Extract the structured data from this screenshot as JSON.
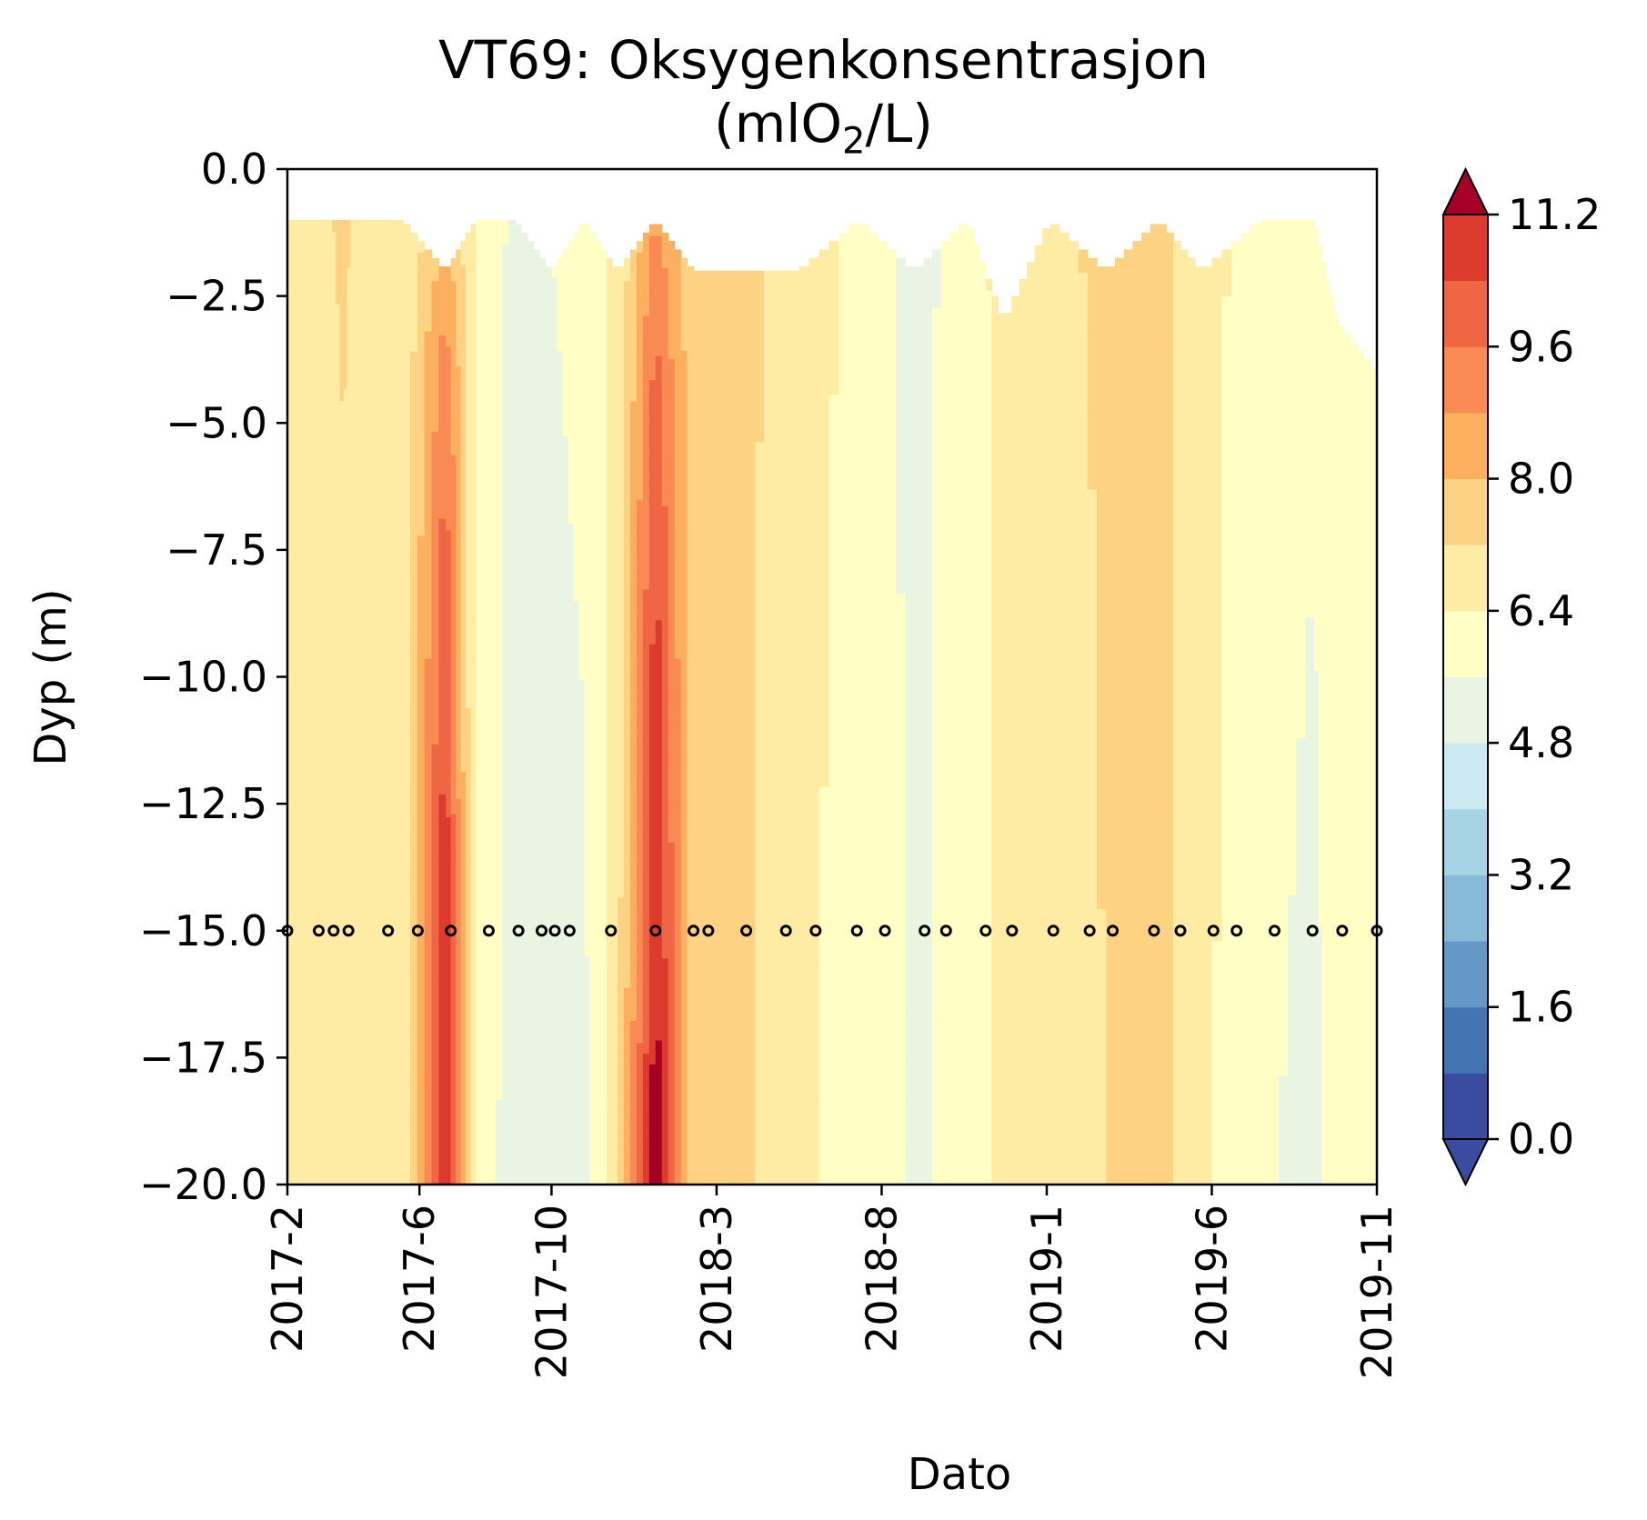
{
  "chart_data": {
    "type": "heatmap",
    "subtype": "filled-contour",
    "title": "VT69: Oksygenkonsentrasjon",
    "subtitle_pre": "(mlO",
    "subtitle_sub": "2",
    "subtitle_post": "/L)",
    "xlabel": "Dato",
    "ylabel": "Dyp (m)",
    "ylim": [
      -20.0,
      0.0
    ],
    "yticks": [
      "0.0",
      "−2.5",
      "−5.0",
      "−7.5",
      "−10.0",
      "−12.5",
      "−15.0",
      "−17.5",
      "−20.0"
    ],
    "ytick_values": [
      0.0,
      -2.5,
      -5.0,
      -7.5,
      -10.0,
      -12.5,
      -15.0,
      -17.5,
      -20.0
    ],
    "xtick_labels": [
      "2017-2",
      "2017-6",
      "2017-10",
      "2018-3",
      "2018-8",
      "2019-1",
      "2019-6",
      "2019-11"
    ],
    "xtick_months": [
      0,
      4,
      8,
      13,
      18,
      23,
      28,
      33
    ],
    "colorbar": {
      "levels": [
        0.0,
        0.8,
        1.6,
        2.4,
        3.2,
        4.0,
        4.8,
        5.6,
        6.4,
        7.2,
        8.0,
        8.8,
        9.6,
        10.4,
        11.2
      ],
      "tick_labels": [
        "0.0",
        "1.6",
        "3.2",
        "4.8",
        "6.4",
        "8.0",
        "9.6",
        "11.2"
      ],
      "tick_values": [
        0.0,
        1.6,
        3.2,
        4.8,
        6.4,
        8.0,
        9.6,
        11.2
      ],
      "colors": [
        "#3a4ca0",
        "#4574b3",
        "#6597c7",
        "#88b9d9",
        "#a6d4e6",
        "#cde9f1",
        "#e9f4e2",
        "#fffec4",
        "#feeba4",
        "#fed283",
        "#fdaf60",
        "#f98a53",
        "#ef6644",
        "#dc3b2e",
        "#a50026"
      ],
      "extend": "both"
    },
    "samples": {
      "depth": -15.0,
      "months": [
        0,
        0.95,
        1.4,
        1.85,
        3.05,
        3.95,
        4.95,
        6.1,
        7.0,
        7.7,
        8.1,
        8.55,
        9.8,
        11.15,
        12.3,
        12.75,
        13.9,
        15.1,
        16.0,
        17.25,
        18.1,
        19.3,
        19.95,
        21.15,
        21.95,
        23.2,
        24.3,
        25.0,
        26.25,
        27.05,
        28.05,
        28.75,
        29.9,
        31.05,
        31.95,
        33.0
      ]
    },
    "columns": [
      {
        "month": 0.0,
        "surface": -1.0,
        "top": 6.8,
        "bottom": 6.8
      },
      {
        "month": 1.0,
        "surface": -1.0,
        "top": 7.0,
        "bottom": 6.8
      },
      {
        "month": 1.7,
        "surface": -1.0,
        "top": 7.4,
        "bottom": 7.0
      },
      {
        "month": 2.3,
        "surface": -1.0,
        "top": 6.9,
        "bottom": 6.8
      },
      {
        "month": 3.5,
        "surface": -1.0,
        "top": 6.4,
        "bottom": 6.7
      },
      {
        "month": 4.8,
        "surface": -2.0,
        "top": 8.0,
        "bottom": 11.6
      },
      {
        "month": 5.7,
        "surface": -1.0,
        "top": 6.3,
        "bottom": 6.0
      },
      {
        "month": 6.9,
        "surface": -1.0,
        "top": 5.4,
        "bottom": 5.3
      },
      {
        "month": 8.0,
        "surface": -2.0,
        "top": 5.6,
        "bottom": 5.3
      },
      {
        "month": 9.0,
        "surface": -1.0,
        "top": 6.1,
        "bottom": 5.4
      },
      {
        "month": 10.0,
        "surface": -2.0,
        "top": 6.5,
        "bottom": 6.9
      },
      {
        "month": 11.15,
        "surface": -1.0,
        "top": 8.6,
        "bottom": 11.8
      },
      {
        "month": 12.3,
        "surface": -2.0,
        "top": 7.5,
        "bottom": 7.4
      },
      {
        "month": 13.9,
        "surface": -2.0,
        "top": 7.4,
        "bottom": 7.3
      },
      {
        "month": 15.5,
        "surface": -2.0,
        "top": 6.9,
        "bottom": 6.5
      },
      {
        "month": 17.3,
        "surface": -1.0,
        "top": 6.2,
        "bottom": 6.1
      },
      {
        "month": 19.0,
        "surface": -2.0,
        "top": 5.3,
        "bottom": 5.5
      },
      {
        "month": 20.6,
        "surface": -1.0,
        "top": 6.0,
        "bottom": 5.8
      },
      {
        "month": 21.7,
        "surface": -3.0,
        "top": 6.7,
        "bottom": 6.7
      },
      {
        "month": 23.1,
        "surface": -1.0,
        "top": 7.0,
        "bottom": 6.8
      },
      {
        "month": 24.8,
        "surface": -2.0,
        "top": 7.4,
        "bottom": 7.2
      },
      {
        "month": 26.4,
        "surface": -1.0,
        "top": 7.5,
        "bottom": 7.6
      },
      {
        "month": 27.7,
        "surface": -2.0,
        "top": 6.7,
        "bottom": 6.6
      },
      {
        "month": 29.5,
        "surface": -1.0,
        "top": 6.1,
        "bottom": 5.7
      },
      {
        "month": 31.1,
        "surface": -1.0,
        "top": 5.9,
        "bottom": 5.4
      },
      {
        "month": 31.8,
        "surface": -3.0,
        "top": 6.4,
        "bottom": 5.9
      },
      {
        "month": 33.0,
        "surface": -4.0,
        "top": 6.2,
        "bottom": 6.0
      }
    ],
    "grid": false
  }
}
